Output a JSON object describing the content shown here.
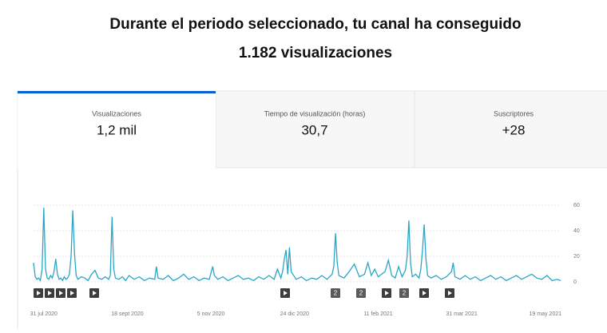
{
  "header": {
    "title_line1": "Durante el periodo seleccionado, tu canal ha conseguido",
    "title_line2": "1.182 visualizaciones"
  },
  "tabs": [
    {
      "label": "Visualizaciones",
      "value": "1,2 mil"
    },
    {
      "label": "Tiempo de visualización (horas)",
      "value": "30,7"
    },
    {
      "label": "Suscriptores",
      "value": "+28"
    }
  ],
  "markers": [
    "2",
    "2",
    "2"
  ],
  "chart_data": {
    "type": "line",
    "color": "#2aa6c9",
    "x": [
      -6,
      -5,
      -4,
      -3,
      -2,
      -1,
      0,
      1,
      2,
      3,
      4,
      5,
      6,
      7,
      8,
      9,
      10,
      11,
      12,
      13,
      14,
      15,
      16,
      17,
      18,
      19,
      20,
      22,
      24,
      26,
      28,
      30,
      32,
      34,
      36,
      38,
      39,
      40,
      41,
      42,
      44,
      46,
      48,
      50,
      53,
      56,
      59,
      62,
      65,
      66,
      67,
      70,
      73,
      76,
      79,
      82,
      85,
      88,
      91,
      94,
      97,
      99,
      100,
      102,
      105,
      108,
      111,
      114,
      117,
      120,
      123,
      126,
      129,
      132,
      135,
      137,
      139,
      140,
      141,
      142,
      143,
      144,
      145,
      148,
      151,
      154,
      157,
      160,
      163,
      166,
      169,
      170,
      171,
      172,
      173,
      176,
      179,
      182,
      185,
      188,
      190,
      192,
      194,
      196,
      198,
      200,
      202,
      204,
      206,
      208,
      210,
      212,
      213,
      214,
      215,
      216,
      218,
      220,
      221,
      222,
      223,
      224,
      225,
      227,
      230,
      233,
      236,
      239,
      240,
      241,
      244,
      247,
      250,
      253,
      256,
      259,
      262,
      265,
      268,
      271,
      274,
      277,
      280,
      283,
      286,
      289,
      292,
      295,
      298,
      301,
      303
    ],
    "values": [
      15,
      4,
      2,
      3,
      1,
      10,
      58,
      10,
      3,
      2,
      5,
      3,
      8,
      18,
      6,
      2,
      3,
      1,
      4,
      2,
      3,
      6,
      20,
      56,
      22,
      5,
      2,
      4,
      3,
      1,
      6,
      9,
      3,
      2,
      4,
      2,
      5,
      51,
      10,
      3,
      2,
      4,
      1,
      5,
      2,
      4,
      1,
      3,
      2,
      12,
      3,
      2,
      5,
      1,
      3,
      6,
      2,
      4,
      1,
      3,
      2,
      12,
      5,
      2,
      4,
      1,
      3,
      5,
      2,
      3,
      1,
      4,
      2,
      5,
      2,
      10,
      3,
      8,
      18,
      25,
      6,
      27,
      8,
      2,
      4,
      1,
      3,
      2,
      5,
      2,
      6,
      12,
      38,
      15,
      5,
      3,
      8,
      14,
      4,
      6,
      15,
      5,
      10,
      4,
      6,
      8,
      17,
      5,
      3,
      12,
      4,
      9,
      20,
      48,
      15,
      4,
      6,
      3,
      10,
      25,
      45,
      18,
      5,
      3,
      5,
      2,
      4,
      8,
      15,
      4,
      2,
      5,
      2,
      4,
      1,
      3,
      5,
      2,
      4,
      1,
      3,
      5,
      2,
      4,
      6,
      3,
      2,
      5,
      1,
      2,
      1
    ],
    "xlim": [
      -6,
      303
    ],
    "xticks": [
      {
        "value": 0,
        "label": "31 jul 2020"
      },
      {
        "value": 49,
        "label": "18 sept 2020"
      },
      {
        "value": 98,
        "label": "5 nov 2020"
      },
      {
        "value": 147,
        "label": "24 dic 2020"
      },
      {
        "value": 196,
        "label": "11 feb 2021"
      },
      {
        "value": 245,
        "label": "31 mar 2021"
      },
      {
        "value": 294,
        "label": "19 may 2021"
      }
    ],
    "ylim": [
      0,
      60
    ],
    "yticks": [
      0,
      20,
      40,
      60
    ],
    "grid": true
  }
}
